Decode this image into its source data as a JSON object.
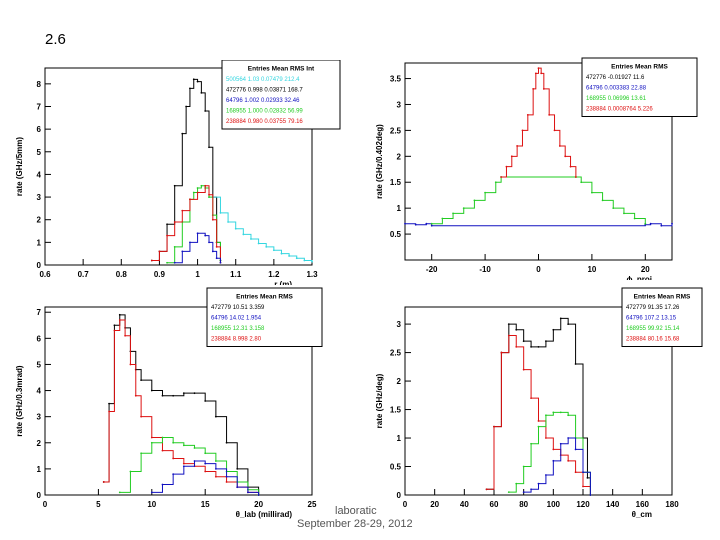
{
  "slide": {
    "number": "2.6"
  },
  "footer": {
    "lab": "laboratic",
    "date": "September 28-29, 2012"
  },
  "colors": {
    "black": "#000000",
    "cyan": "#34d6e0",
    "blue": "#1010c0",
    "green": "#22cc22",
    "red": "#dd1111"
  },
  "chart_data": [
    {
      "type": "line",
      "panel": "top-left",
      "xlabel": "r (m)",
      "ylabel": "rate (GHz/5mm)",
      "xlim": [
        0.6,
        1.3
      ],
      "ylim": [
        0,
        8.7
      ],
      "xticks": [
        0.6,
        0.7,
        0.8,
        0.9,
        1.0,
        1.1,
        1.2,
        1.3
      ],
      "xticklabels": [
        "0.6",
        "0.7",
        "0.8",
        "0.9",
        "1",
        "1.1",
        "1.2",
        "1.3"
      ],
      "yticks": [
        0,
        1,
        2,
        3,
        4,
        5,
        6,
        7,
        8
      ],
      "yticklabels": [
        "0",
        "1",
        "2",
        "3",
        "4",
        "5",
        "6",
        "7",
        "8"
      ],
      "stats": {
        "header": "Entries  Mean  RMS  Int",
        "rows": [
          {
            "color": "cyan",
            "text": "500564  1.03  0.07479  212.4"
          },
          {
            "color": "black",
            "text": "472776  0.998  0.03871  168.7"
          },
          {
            "color": "blue",
            "text": "64796  1.002  0.02933  32.46"
          },
          {
            "color": "green",
            "text": "168955  1.000  0.02832  56.99"
          },
          {
            "color": "red",
            "text": "238884  0.980  0.03755  79.16"
          }
        ]
      },
      "series": [
        {
          "name": "black",
          "color": "black",
          "x": [
            0.88,
            0.9,
            0.92,
            0.94,
            0.96,
            0.97,
            0.98,
            0.99,
            1.0,
            1.01,
            1.02,
            1.03,
            1.04,
            1.05,
            1.06
          ],
          "y": [
            0.2,
            0.6,
            1.8,
            3.5,
            5.8,
            7.0,
            7.8,
            8.2,
            8.1,
            7.6,
            6.8,
            5.2,
            3.0,
            1.0,
            0.2
          ]
        },
        {
          "name": "cyan",
          "color": "cyan",
          "x": [
            1.04,
            1.06,
            1.08,
            1.1,
            1.12,
            1.14,
            1.16,
            1.18,
            1.2,
            1.22,
            1.24,
            1.26,
            1.28,
            1.3
          ],
          "y": [
            3.0,
            2.3,
            1.9,
            1.6,
            1.35,
            1.15,
            0.95,
            0.8,
            0.65,
            0.5,
            0.4,
            0.3,
            0.2,
            0.15
          ]
        },
        {
          "name": "green",
          "color": "green",
          "x": [
            0.92,
            0.94,
            0.96,
            0.98,
            0.99,
            1.0,
            1.01,
            1.02,
            1.03,
            1.04,
            1.05,
            1.06
          ],
          "y": [
            0.1,
            0.8,
            1.9,
            2.9,
            3.2,
            3.4,
            3.5,
            3.4,
            3.0,
            2.2,
            1.0,
            0.2
          ]
        },
        {
          "name": "red",
          "color": "red",
          "x": [
            0.88,
            0.9,
            0.92,
            0.94,
            0.96,
            0.98,
            1.0,
            1.02,
            1.03,
            1.04,
            1.05,
            1.06
          ],
          "y": [
            0.2,
            0.6,
            1.3,
            1.9,
            2.4,
            2.9,
            3.2,
            3.5,
            3.1,
            2.0,
            0.8,
            0.1
          ]
        },
        {
          "name": "blue",
          "color": "blue",
          "x": [
            0.94,
            0.96,
            0.98,
            1.0,
            1.02,
            1.03,
            1.04,
            1.05,
            1.06
          ],
          "y": [
            0.1,
            0.6,
            1.0,
            1.4,
            1.3,
            1.0,
            0.6,
            0.3,
            0.1
          ]
        }
      ]
    },
    {
      "type": "line",
      "panel": "top-right",
      "xlabel": "ϕ_proj",
      "ylabel": "rate (GHz/0.402deg)",
      "xlim": [
        -25,
        25
      ],
      "ylim": [
        0,
        3.8
      ],
      "xticks": [
        -20,
        -10,
        0,
        10,
        20
      ],
      "xticklabels": [
        "-20",
        "-10",
        "0",
        "10",
        "20"
      ],
      "yticks": [
        0.5,
        1.0,
        1.5,
        2.0,
        2.5,
        3.0,
        3.5
      ],
      "yticklabels": [
        "0.5",
        "1",
        "1.5",
        "2",
        "2.5",
        "3",
        "3.5"
      ],
      "stats": {
        "header": "Entries  Mean  RMS",
        "rows": [
          {
            "color": "black",
            "text": "472776  -0.01927  11.6"
          },
          {
            "color": "blue",
            "text": "64796  0.003383  22.88"
          },
          {
            "color": "green",
            "text": "168955  0.06996  13.61"
          },
          {
            "color": "red",
            "text": "238884  0.0008764  5.226"
          }
        ]
      },
      "series": [
        {
          "name": "blue",
          "color": "blue",
          "x": [
            -25,
            -23,
            -21,
            -20,
            20,
            21,
            23,
            25
          ],
          "y": [
            0.7,
            0.68,
            0.7,
            0.66,
            0.68,
            0.7,
            0.66,
            0.7
          ]
        },
        {
          "name": "green",
          "color": "green",
          "x": [
            -20,
            -18,
            -16,
            -14,
            -12,
            -10,
            -8,
            -7,
            7,
            8,
            10,
            12,
            14,
            16,
            18,
            20
          ],
          "y": [
            0.7,
            0.8,
            0.9,
            1.0,
            1.15,
            1.3,
            1.5,
            1.6,
            1.6,
            1.5,
            1.3,
            1.15,
            1.0,
            0.9,
            0.8,
            0.7
          ]
        },
        {
          "name": "red",
          "color": "red",
          "x": [
            -7,
            -6,
            -5,
            -4,
            -3,
            -2,
            -1,
            -0.5,
            0,
            0.5,
            1,
            2,
            3,
            4,
            5,
            6,
            7
          ],
          "y": [
            1.6,
            1.8,
            2.0,
            2.2,
            2.5,
            2.8,
            3.3,
            3.6,
            3.7,
            3.6,
            3.3,
            2.8,
            2.5,
            2.2,
            2.0,
            1.8,
            1.6
          ]
        }
      ]
    },
    {
      "type": "line",
      "panel": "bottom-left",
      "xlabel": "θ_lab (millirad)",
      "ylabel": "rate (GHz/0.3mrad)",
      "xlim": [
        0,
        25
      ],
      "ylim": [
        0,
        7.2
      ],
      "xticks": [
        0,
        5,
        10,
        15,
        20,
        25
      ],
      "xticklabels": [
        "0",
        "5",
        "10",
        "15",
        "20",
        "25"
      ],
      "yticks": [
        0,
        1,
        2,
        3,
        4,
        5,
        6,
        7
      ],
      "yticklabels": [
        "0",
        "1",
        "2",
        "3",
        "4",
        "5",
        "6",
        "7"
      ],
      "stats": {
        "header": "Entries  Mean  RMS",
        "rows": [
          {
            "color": "black",
            "text": "472779  10.51  3.359"
          },
          {
            "color": "blue",
            "text": "64796  14.02  1.954"
          },
          {
            "color": "green",
            "text": "168955  12.31  3.158"
          },
          {
            "color": "red",
            "text": "238884  8.998  2.80"
          }
        ]
      },
      "series": [
        {
          "name": "black",
          "color": "black",
          "x": [
            5.5,
            6,
            6.5,
            7,
            7.5,
            8,
            8.5,
            9,
            10,
            11,
            12,
            13,
            14,
            15,
            16,
            17,
            18,
            19,
            20
          ],
          "y": [
            0.5,
            3.5,
            6.5,
            6.9,
            6.4,
            5.5,
            4.8,
            4.4,
            4.0,
            3.8,
            3.8,
            3.9,
            3.9,
            3.6,
            3.0,
            2.0,
            1.0,
            0.3,
            0.0
          ]
        },
        {
          "name": "red",
          "color": "red",
          "x": [
            5.5,
            6,
            6.5,
            7,
            7.5,
            8,
            8.5,
            9,
            10,
            11,
            12,
            13,
            14,
            15,
            16,
            17,
            18,
            19,
            20
          ],
          "y": [
            0.5,
            3.2,
            6.3,
            6.7,
            6.1,
            5.0,
            3.8,
            3.0,
            2.2,
            1.7,
            1.4,
            1.2,
            1.1,
            0.9,
            0.7,
            0.5,
            0.3,
            0.1,
            0.0
          ]
        },
        {
          "name": "green",
          "color": "green",
          "x": [
            7,
            8,
            9,
            10,
            11,
            12,
            13,
            14,
            15,
            16,
            17,
            18,
            19,
            20
          ],
          "y": [
            0.1,
            0.9,
            1.6,
            2.0,
            2.2,
            2.0,
            1.9,
            1.8,
            1.6,
            1.3,
            0.9,
            0.5,
            0.2,
            0.0
          ]
        },
        {
          "name": "blue",
          "color": "blue",
          "x": [
            10,
            11,
            12,
            13,
            14,
            15,
            16,
            17,
            18,
            19,
            20
          ],
          "y": [
            0.1,
            0.4,
            0.8,
            1.1,
            1.3,
            1.2,
            1.0,
            0.7,
            0.3,
            0.1,
            0.0
          ]
        }
      ]
    },
    {
      "type": "line",
      "panel": "bottom-right",
      "xlabel": "θ_cm",
      "ylabel": "rate (GHz/deg)",
      "xlim": [
        0,
        180
      ],
      "ylim": [
        0,
        3.3
      ],
      "xticks": [
        0,
        20,
        40,
        60,
        80,
        100,
        120,
        140,
        160,
        180
      ],
      "xticklabels": [
        "0",
        "20",
        "40",
        "60",
        "80",
        "100",
        "120",
        "140",
        "160",
        "180"
      ],
      "yticks": [
        0,
        0.5,
        1.0,
        1.5,
        2.0,
        2.5,
        3.0
      ],
      "yticklabels": [
        "0",
        "0.5",
        "1",
        "1.5",
        "2",
        "2.5",
        "3"
      ],
      "stats": {
        "header": "Entries  Mean  RMS",
        "rows": [
          {
            "color": "black",
            "text": "472779  91.35  17.26"
          },
          {
            "color": "blue",
            "text": "64796  107.2  13.15"
          },
          {
            "color": "green",
            "text": "168955  99.92  15.14"
          },
          {
            "color": "red",
            "text": "238884  80.16  15.68"
          }
        ]
      },
      "series": [
        {
          "name": "black",
          "color": "black",
          "x": [
            55,
            60,
            65,
            70,
            75,
            80,
            85,
            90,
            95,
            100,
            105,
            110,
            115,
            120,
            123,
            125
          ],
          "y": [
            0.1,
            1.2,
            2.5,
            3.0,
            2.9,
            2.7,
            2.6,
            2.6,
            2.7,
            2.9,
            3.1,
            3.0,
            2.3,
            1.0,
            0.3,
            0.0
          ]
        },
        {
          "name": "red",
          "color": "red",
          "x": [
            55,
            60,
            65,
            70,
            75,
            80,
            85,
            90,
            95,
            100,
            105,
            110,
            115,
            120,
            125
          ],
          "y": [
            0.1,
            1.2,
            2.5,
            2.8,
            2.6,
            2.2,
            1.7,
            1.3,
            1.0,
            0.8,
            0.7,
            0.6,
            0.4,
            0.15,
            0.0
          ]
        },
        {
          "name": "green",
          "color": "green",
          "x": [
            70,
            75,
            80,
            85,
            90,
            95,
            100,
            105,
            110,
            115,
            120,
            125
          ],
          "y": [
            0.05,
            0.2,
            0.5,
            0.9,
            1.2,
            1.4,
            1.45,
            1.45,
            1.4,
            1.0,
            0.4,
            0.0
          ]
        },
        {
          "name": "blue",
          "color": "blue",
          "x": [
            80,
            85,
            90,
            95,
            100,
            105,
            110,
            115,
            120,
            125
          ],
          "y": [
            0.05,
            0.1,
            0.2,
            0.35,
            0.6,
            0.9,
            1.0,
            0.8,
            0.4,
            0.0
          ]
        }
      ]
    }
  ]
}
